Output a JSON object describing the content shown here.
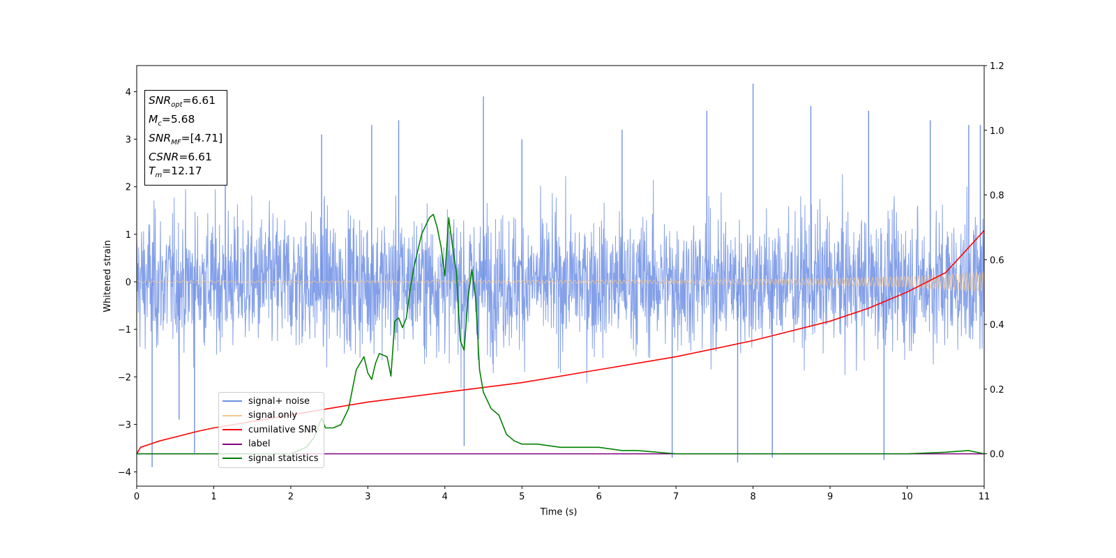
{
  "chart_data": {
    "type": "line",
    "xlabel": "Time (s)",
    "ylabel": "Whitened strain",
    "xlim": [
      0,
      11
    ],
    "ylim": [
      -4.3,
      4.55
    ],
    "y2lim": [
      -0.1,
      1.2
    ],
    "x_ticks": [
      "0",
      "1",
      "2",
      "3",
      "4",
      "5",
      "6",
      "7",
      "8",
      "9",
      "10",
      "11"
    ],
    "y_ticks": [
      "−4",
      "−3",
      "−2",
      "−1",
      "0",
      "1",
      "2",
      "3",
      "4"
    ],
    "y2_ticks": [
      "0.0",
      "0.2",
      "0.4",
      "0.6",
      "0.8",
      "1.0",
      "1.2"
    ],
    "grid": false,
    "legend_position": "lower-left",
    "colors": {
      "signal_noise": "#6f8fe5",
      "signal_only": "#f5c68a",
      "cumulative_snr": "#ff0000",
      "label": "#800080",
      "signal_statistics": "#008000"
    },
    "series": [
      {
        "name": "signal+ noise",
        "axis": "left",
        "description_values": {
          "mean": 0,
          "typical_band": [
            -2.3,
            2.4
          ],
          "max": 4.17,
          "max_at": 8.0,
          "min": -3.9,
          "min_at": 0.2
        }
      },
      {
        "name": "signal only",
        "axis": "left",
        "x": [
          0,
          1,
          2,
          3,
          4,
          5,
          6,
          7,
          8,
          9,
          10,
          11
        ],
        "envelope": [
          0.02,
          0.02,
          0.02,
          0.02,
          0.025,
          0.03,
          0.035,
          0.04,
          0.05,
          0.07,
          0.11,
          0.2
        ]
      },
      {
        "name": "cumilative SNR",
        "axis": "right",
        "x": [
          0,
          0.05,
          0.3,
          0.8,
          1,
          2,
          3,
          4,
          5,
          6,
          7,
          8,
          9,
          9.5,
          10,
          10.5,
          11
        ],
        "values": [
          0.0,
          0.02,
          0.04,
          0.07,
          0.08,
          0.12,
          0.16,
          0.19,
          0.22,
          0.26,
          0.3,
          0.35,
          0.41,
          0.45,
          0.5,
          0.56,
          0.69
        ]
      },
      {
        "name": "label",
        "axis": "right",
        "x": [
          0,
          11
        ],
        "values": [
          0.0,
          0.0
        ]
      },
      {
        "name": "signal statistics",
        "axis": "right",
        "x": [
          0,
          0.5,
          1,
          1.5,
          2,
          2.2,
          2.3,
          2.4,
          2.45,
          2.55,
          2.65,
          2.75,
          2.85,
          2.95,
          3.0,
          3.05,
          3.1,
          3.15,
          3.25,
          3.3,
          3.35,
          3.4,
          3.45,
          3.5,
          3.55,
          3.6,
          3.65,
          3.7,
          3.8,
          3.85,
          3.9,
          3.95,
          4.0,
          4.05,
          4.1,
          4.15,
          4.2,
          4.25,
          4.3,
          4.35,
          4.4,
          4.45,
          4.5,
          4.6,
          4.7,
          4.8,
          4.9,
          5.0,
          5.2,
          5.5,
          5.8,
          6.0,
          6.3,
          6.5,
          7.0,
          7.5,
          8.0,
          8.5,
          9.0,
          10.0,
          10.5,
          10.8,
          11
        ],
        "values": [
          0.0,
          0.0,
          0.0,
          0.0,
          0.0,
          0.02,
          0.05,
          0.11,
          0.08,
          0.08,
          0.09,
          0.14,
          0.26,
          0.3,
          0.25,
          0.23,
          0.28,
          0.31,
          0.3,
          0.24,
          0.41,
          0.42,
          0.39,
          0.42,
          0.51,
          0.58,
          0.63,
          0.68,
          0.73,
          0.74,
          0.7,
          0.64,
          0.55,
          0.73,
          0.64,
          0.56,
          0.35,
          0.32,
          0.48,
          0.57,
          0.48,
          0.26,
          0.19,
          0.14,
          0.12,
          0.06,
          0.04,
          0.03,
          0.03,
          0.02,
          0.02,
          0.02,
          0.01,
          0.01,
          0.0,
          0.0,
          0.0,
          0.0,
          0.0,
          0.0,
          0.005,
          0.01,
          0.0
        ]
      }
    ],
    "annotation": {
      "snr_opt_value": "=6.61",
      "mc_value": "=5.68",
      "snr_mf_value": "=[4.71]",
      "csnr_value": "=6.61",
      "tm_value": "=12.17"
    }
  },
  "annotation_labels": {
    "snr_opt_sym": "SNR",
    "snr_opt_sub": "opt",
    "mc_sym": "M",
    "mc_sub": "c",
    "snr_mf_sym": "SNR",
    "snr_mf_sub": "MF",
    "csnr_sym": "CSNR",
    "tm_sym": "T",
    "tm_sub": "m"
  },
  "legend": [
    {
      "label": "signal+ noise",
      "color": "#6f8fe5"
    },
    {
      "label": "signal only",
      "color": "#f5c68a"
    },
    {
      "label": "cumilative SNR",
      "color": "#ff0000"
    },
    {
      "label": "label",
      "color": "#800080"
    },
    {
      "label": "signal statistics",
      "color": "#008000"
    }
  ]
}
